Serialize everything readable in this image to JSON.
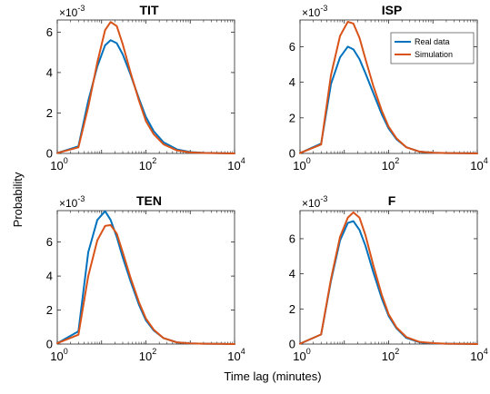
{
  "figure": {
    "ylabel": "Probability",
    "xlabel": "Time lag (minutes)"
  },
  "legend": {
    "entries": [
      {
        "label": "Real data",
        "color": "#0072BD"
      },
      {
        "label": "Simulation",
        "color": "#D95319"
      }
    ],
    "panel": "ISP",
    "placement": "top-right"
  },
  "chart_data": [
    {
      "type": "line",
      "title": "TIT",
      "scale_label": "×10",
      "scale_exponent": "-3",
      "xscale": "log",
      "xlim": [
        1,
        10000
      ],
      "ylim": [
        0,
        6.6
      ],
      "xticks": [
        1,
        100,
        10000
      ],
      "xtick_base": "10",
      "xtick_exponents": [
        "0",
        "2",
        "4"
      ],
      "yticks": [
        "0",
        "2",
        "4",
        "6"
      ],
      "series": [
        {
          "name": "Real data",
          "color": "#0072BD",
          "x": [
            1,
            3,
            5,
            8,
            12,
            16,
            22,
            30,
            45,
            70,
            100,
            150,
            250,
            500,
            1000,
            2000,
            5000,
            10000
          ],
          "y": [
            0.02,
            0.35,
            2.6,
            4.3,
            5.35,
            5.6,
            5.45,
            4.9,
            3.9,
            2.7,
            1.8,
            1.1,
            0.55,
            0.2,
            0.07,
            0.03,
            0.01,
            0.0
          ]
        },
        {
          "name": "Simulation",
          "color": "#D95319",
          "x": [
            1,
            3,
            5,
            8,
            12,
            16,
            22,
            30,
            45,
            70,
            100,
            150,
            250,
            500,
            1000,
            2000,
            5000,
            10000
          ],
          "y": [
            0.02,
            0.3,
            2.3,
            4.5,
            6.1,
            6.5,
            6.3,
            5.4,
            4.0,
            2.6,
            1.6,
            0.95,
            0.45,
            0.15,
            0.05,
            0.02,
            0.01,
            0.0
          ]
        }
      ]
    },
    {
      "type": "line",
      "title": "ISP",
      "scale_label": "×10",
      "scale_exponent": "-3",
      "xscale": "log",
      "xlim": [
        1,
        10000
      ],
      "ylim": [
        0,
        7.5
      ],
      "xticks": [
        1,
        100,
        10000
      ],
      "xtick_base": "10",
      "xtick_exponents": [
        "0",
        "2",
        "4"
      ],
      "yticks": [
        "0",
        "2",
        "4",
        "6"
      ],
      "series": [
        {
          "name": "Real data",
          "color": "#0072BD",
          "x": [
            1,
            3,
            5,
            8,
            12,
            16,
            22,
            30,
            45,
            70,
            100,
            150,
            250,
            500,
            1000,
            2000,
            5000,
            10000
          ],
          "y": [
            0.02,
            0.55,
            3.9,
            5.4,
            6.0,
            5.85,
            5.3,
            4.5,
            3.4,
            2.2,
            1.4,
            0.8,
            0.35,
            0.1,
            0.04,
            0.02,
            0.01,
            0.0
          ]
        },
        {
          "name": "Simulation",
          "color": "#D95319",
          "x": [
            1,
            3,
            5,
            8,
            12,
            16,
            22,
            30,
            45,
            70,
            100,
            150,
            250,
            500,
            1000,
            2000,
            5000,
            10000
          ],
          "y": [
            0.02,
            0.5,
            4.4,
            6.6,
            7.4,
            7.3,
            6.5,
            5.3,
            3.8,
            2.4,
            1.5,
            0.85,
            0.35,
            0.1,
            0.04,
            0.02,
            0.01,
            0.0
          ]
        }
      ]
    },
    {
      "type": "line",
      "title": "TEN",
      "scale_label": "×10",
      "scale_exponent": "-3",
      "xscale": "log",
      "xlim": [
        1,
        10000
      ],
      "ylim": [
        0,
        7.85
      ],
      "xticks": [
        1,
        100,
        10000
      ],
      "xtick_base": "10",
      "xtick_exponents": [
        "0",
        "2",
        "4"
      ],
      "yticks": [
        "0",
        "2",
        "4",
        "6"
      ],
      "series": [
        {
          "name": "Real data",
          "color": "#0072BD",
          "x": [
            1,
            3,
            5,
            8,
            12,
            16,
            22,
            30,
            45,
            70,
            100,
            150,
            250,
            500,
            1000,
            2000,
            5000,
            10000
          ],
          "y": [
            0.05,
            0.75,
            5.4,
            7.3,
            7.82,
            7.3,
            6.3,
            5.1,
            3.7,
            2.3,
            1.4,
            0.8,
            0.35,
            0.1,
            0.04,
            0.02,
            0.01,
            0.0
          ]
        },
        {
          "name": "Simulation",
          "color": "#D95319",
          "x": [
            1,
            3,
            5,
            8,
            12,
            16,
            22,
            30,
            45,
            70,
            100,
            150,
            250,
            500,
            1000,
            2000,
            5000,
            10000
          ],
          "y": [
            0.05,
            0.55,
            4.0,
            6.1,
            6.95,
            7.0,
            6.5,
            5.4,
            3.9,
            2.45,
            1.5,
            0.85,
            0.35,
            0.1,
            0.04,
            0.02,
            0.01,
            0.0
          ]
        }
      ]
    },
    {
      "type": "line",
      "title": "F",
      "scale_label": "×10",
      "scale_exponent": "-3",
      "xscale": "log",
      "xlim": [
        1,
        10000
      ],
      "ylim": [
        0,
        7.6
      ],
      "xticks": [
        1,
        100,
        10000
      ],
      "xtick_base": "10",
      "xtick_exponents": [
        "0",
        "2",
        "4"
      ],
      "yticks": [
        "0",
        "2",
        "4",
        "6"
      ],
      "series": [
        {
          "name": "Real data",
          "color": "#0072BD",
          "x": [
            1,
            3,
            5,
            8,
            12,
            16,
            22,
            30,
            45,
            70,
            100,
            150,
            250,
            500,
            1000,
            2000,
            5000,
            10000
          ],
          "y": [
            0.02,
            0.55,
            3.6,
            5.9,
            6.9,
            7.0,
            6.5,
            5.6,
            4.1,
            2.6,
            1.6,
            0.9,
            0.35,
            0.1,
            0.04,
            0.02,
            0.01,
            0.0
          ]
        },
        {
          "name": "Simulation",
          "color": "#D95319",
          "x": [
            1,
            3,
            5,
            8,
            12,
            16,
            22,
            30,
            45,
            70,
            100,
            150,
            250,
            500,
            1000,
            2000,
            5000,
            10000
          ],
          "y": [
            0.02,
            0.55,
            3.7,
            6.1,
            7.2,
            7.5,
            7.2,
            6.2,
            4.5,
            2.8,
            1.7,
            0.95,
            0.4,
            0.12,
            0.05,
            0.02,
            0.01,
            0.0
          ]
        }
      ]
    }
  ]
}
